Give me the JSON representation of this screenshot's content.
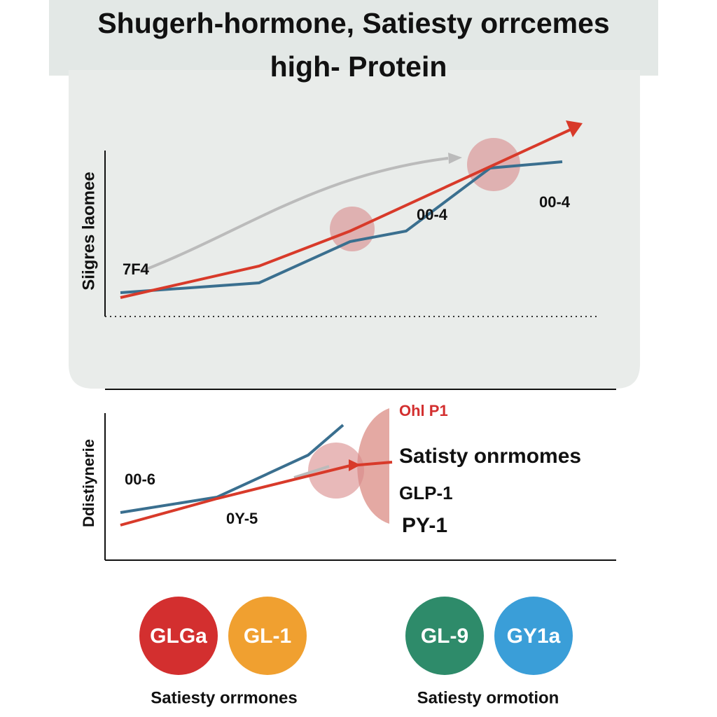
{
  "title": {
    "line1": "Shugerh-hormone, Satiesty orrcemes",
    "line2": "high- Protein"
  },
  "panel_top": {
    "y_label": "Siigres laomee",
    "labels": [
      "7F4",
      "00-4",
      "00-4"
    ]
  },
  "panel_bottom": {
    "y_label": "Ddistiynerie",
    "labels": [
      "00-6",
      "0Y-5"
    ],
    "legend": {
      "heading": "Ohl P1",
      "title": "Satisty onrmomes",
      "items": [
        "GLP-1",
        "PY-1"
      ]
    }
  },
  "badges": [
    "GLGa",
    "GL-1",
    "GL-9",
    "GY1a"
  ],
  "captions": [
    "Satiesty orrmones",
    "Satiesty ormotion"
  ]
}
